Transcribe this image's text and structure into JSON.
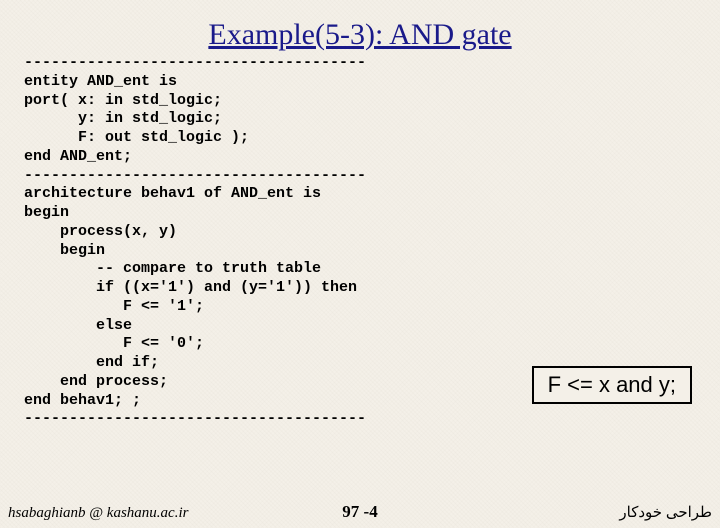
{
  "title": "Example(5-3): AND gate",
  "code": "--------------------------------------\nentity AND_ent is\nport( x: in std_logic;\n      y: in std_logic;\n      F: out std_logic );\nend AND_ent;\n--------------------------------------\narchitecture behav1 of AND_ent is\nbegin\n    process(x, y)\n    begin\n        -- compare to truth table\n        if ((x='1') and (y='1')) then\n           F <= '1';\n        else\n           F <= '0';\n        end if;\n    end process;\nend behav1; ;\n--------------------------------------",
  "callout": "F <= x and y;",
  "footer": {
    "left": "hsabaghianb @ kashanu.ac.ir",
    "center": "97 -4",
    "right": "طراحی خودکار"
  },
  "style": {
    "title_color": "#1a1a8a",
    "title_fontsize": 30,
    "code_fontsize": 15,
    "callout_fontsize": 22,
    "background_color": "#f4f0e8",
    "callout_border_color": "#000000"
  }
}
